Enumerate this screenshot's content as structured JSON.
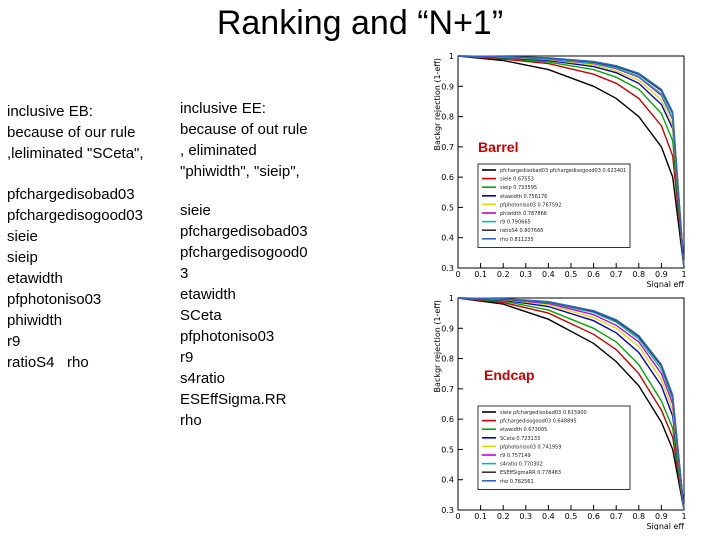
{
  "slide": {
    "title": "Ranking and “N+1”"
  },
  "eb": {
    "heading_lines": [
      "inclusive EB:",
      "because of our rule",
      ",leliminated \"SCeta\","
    ],
    "variables": [
      "pfchargedisobad03",
      "pfchargedisogood03",
      "sieie",
      "sieip",
      "etawidth",
      "pfphotoniso03",
      "phiwidth",
      "r9",
      "ratioS4   rho"
    ]
  },
  "ee": {
    "heading_lines": [
      "inclusive EE:",
      "because of out rule",
      ", eliminated",
      "\"phiwidth\", \"sieip\","
    ],
    "variables": [
      "sieie",
      "pfchargedisobad03",
      "pfchargedisogood0",
      "3",
      "etawidth",
      "SCeta",
      "pfphotoniso03",
      "r9",
      "s4ratio",
      "ESEffSigma.RR",
      "rho"
    ]
  },
  "plots": [
    {
      "label": "Barrel",
      "label_color": "#cc0000",
      "ylabel": "Backgr rejection (1-eff)",
      "xlabel": "Signal eff",
      "chart_data": {
        "type": "line",
        "title": "",
        "xlabel": "Signal eff",
        "ylabel": "Backgr rejection (1-eff)",
        "xlim": [
          0,
          1
        ],
        "ylim": [
          0.3,
          1.0
        ],
        "x_ticks": [
          "0",
          "0.1",
          "0.2",
          "0.3",
          "0.4",
          "0.5",
          "0.6",
          "0.7",
          "0.8",
          "0.9",
          "1"
        ],
        "y_ticks": [
          "0.3",
          "0.4",
          "0.5",
          "0.6",
          "0.7",
          "0.8",
          "0.9",
          "1"
        ],
        "x": [
          0,
          0.2,
          0.4,
          0.6,
          0.7,
          0.8,
          0.9,
          0.95,
          1.0
        ],
        "series": [
          {
            "name": "pfchargedisobad03 pfchargedisogood03",
            "color": "#000000",
            "auc": "0.623401",
            "values": [
              1.0,
              0.985,
              0.955,
              0.9,
              0.86,
              0.8,
              0.7,
              0.6,
              0.3
            ]
          },
          {
            "name": "sieie",
            "color": "#cc0000",
            "auc": "0.67553",
            "values": [
              1.0,
              0.99,
              0.975,
              0.94,
              0.91,
              0.86,
              0.77,
              0.67,
              0.3
            ]
          },
          {
            "name": "sieip",
            "color": "#00aa00",
            "auc": "0.733595",
            "values": [
              1.0,
              0.993,
              0.98,
              0.955,
              0.93,
              0.89,
              0.81,
              0.72,
              0.3
            ]
          },
          {
            "name": "etawidth",
            "color": "#0000cc",
            "auc": "0.756176",
            "values": [
              1.0,
              0.995,
              0.985,
              0.965,
              0.945,
              0.91,
              0.84,
              0.76,
              0.3
            ]
          },
          {
            "name": "pfphotoniso03",
            "color": "#dddd00",
            "auc": "0.767592",
            "values": [
              1.0,
              0.996,
              0.988,
              0.97,
              0.95,
              0.92,
              0.855,
              0.77,
              0.3
            ]
          },
          {
            "name": "phiwidth",
            "color": "#cc00cc",
            "auc": "0.787866",
            "values": [
              1.0,
              0.997,
              0.99,
              0.975,
              0.958,
              0.93,
              0.87,
              0.79,
              0.3
            ]
          },
          {
            "name": "r9",
            "color": "#00bbbb",
            "auc": "0.790665",
            "values": [
              1.0,
              0.997,
              0.991,
              0.977,
              0.96,
              0.933,
              0.875,
              0.795,
              0.3
            ]
          },
          {
            "name": "ratioS4",
            "color": "#333333",
            "auc": "0.807666",
            "values": [
              1.0,
              0.998,
              0.993,
              0.98,
              0.965,
              0.94,
              0.885,
              0.81,
              0.3
            ]
          },
          {
            "name": "rho",
            "color": "#3366cc",
            "auc": "0.811235",
            "values": [
              1.0,
              0.998,
              0.994,
              0.982,
              0.968,
              0.943,
              0.89,
              0.815,
              0.3
            ]
          }
        ]
      }
    },
    {
      "label": "Endcap",
      "label_color": "#cc0000",
      "ylabel": "Backgr rejection (1-eff)",
      "xlabel": "Signal eff",
      "chart_data": {
        "type": "line",
        "title": "",
        "xlabel": "Signal eff",
        "ylabel": "Backgr rejection (1-eff)",
        "xlim": [
          0,
          1
        ],
        "ylim": [
          0.3,
          1.0
        ],
        "x_ticks": [
          "0",
          "0.1",
          "0.2",
          "0.3",
          "0.4",
          "0.5",
          "0.6",
          "0.7",
          "0.8",
          "0.9",
          "1"
        ],
        "y_ticks": [
          "0.3",
          "0.4",
          "0.5",
          "0.6",
          "0.7",
          "0.8",
          "0.9",
          "1"
        ],
        "x": [
          0,
          0.2,
          0.4,
          0.6,
          0.7,
          0.8,
          0.9,
          0.95,
          1.0
        ],
        "series": [
          {
            "name": "sieie pfchargedisobad03",
            "color": "#000000",
            "auc": "0.615900",
            "values": [
              1.0,
              0.98,
              0.93,
              0.85,
              0.79,
              0.71,
              0.59,
              0.5,
              0.3
            ]
          },
          {
            "name": "pfchargedisogood03",
            "color": "#cc0000",
            "auc": "0.648895",
            "values": [
              1.0,
              0.985,
              0.95,
              0.88,
              0.83,
              0.75,
              0.63,
              0.54,
              0.3
            ]
          },
          {
            "name": "etawidth",
            "color": "#00aa00",
            "auc": "0.673005",
            "values": [
              1.0,
              0.99,
              0.96,
              0.9,
              0.855,
              0.78,
              0.66,
              0.57,
              0.3
            ]
          },
          {
            "name": "SCeta",
            "color": "#0000cc",
            "auc": "0.723133",
            "values": [
              1.0,
              0.993,
              0.972,
              0.925,
              0.885,
              0.82,
              0.71,
              0.61,
              0.3
            ]
          },
          {
            "name": "pfphotoniso03",
            "color": "#dddd00",
            "auc": "0.741959",
            "values": [
              1.0,
              0.995,
              0.978,
              0.935,
              0.9,
              0.84,
              0.73,
              0.63,
              0.3
            ]
          },
          {
            "name": "r9",
            "color": "#cc00cc",
            "auc": "0.757149",
            "values": [
              1.0,
              0.996,
              0.982,
              0.945,
              0.91,
              0.855,
              0.75,
              0.65,
              0.3
            ]
          },
          {
            "name": "s4ratio",
            "color": "#00bbbb",
            "auc": "0.770302",
            "values": [
              1.0,
              0.997,
              0.985,
              0.952,
              0.92,
              0.865,
              0.765,
              0.665,
              0.3
            ]
          },
          {
            "name": "ESEffSigmaRR",
            "color": "#333333",
            "auc": "0.778483",
            "values": [
              1.0,
              0.997,
              0.987,
              0.956,
              0.925,
              0.872,
              0.775,
              0.675,
              0.3
            ]
          },
          {
            "name": "rho",
            "color": "#3366cc",
            "auc": "0.782561",
            "values": [
              1.0,
              0.998,
              0.988,
              0.958,
              0.928,
              0.876,
              0.78,
              0.68,
              0.3
            ]
          }
        ]
      }
    }
  ]
}
